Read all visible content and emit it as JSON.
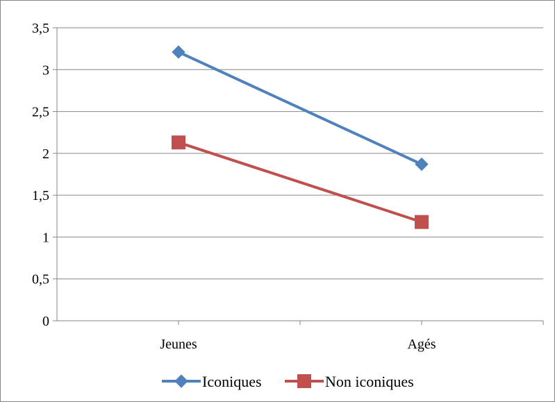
{
  "chart_data": {
    "type": "line",
    "categories": [
      "Jeunes",
      "Agés"
    ],
    "series": [
      {
        "name": "Iconiques",
        "values": [
          3.21,
          1.87
        ],
        "color": "#4F81BD",
        "marker": "diamond"
      },
      {
        "name": "Non iconiques",
        "values": [
          2.13,
          1.18
        ],
        "color": "#C0504D",
        "marker": "square"
      }
    ],
    "y_ticks": [
      "0",
      "0,5",
      "1",
      "1,5",
      "2",
      "2,5",
      "3",
      "3,5"
    ],
    "ylim": [
      0,
      3.5
    ],
    "title": "",
    "xlabel": "",
    "ylabel": "",
    "grid": "horizontal",
    "legend_position": "bottom",
    "gridline_color": "#868686",
    "axis_color": "#868686"
  }
}
